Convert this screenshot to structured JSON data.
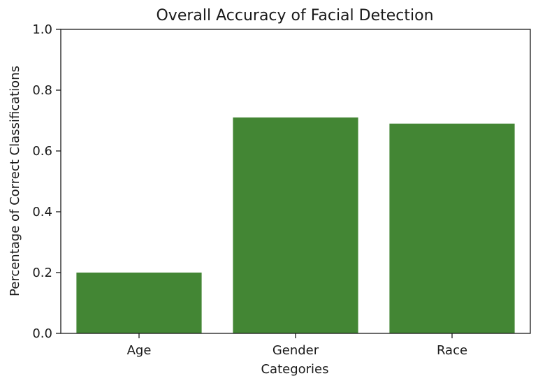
{
  "chart_data": {
    "type": "bar",
    "title": "Overall Accuracy of Facial Detection",
    "xlabel": "Categories",
    "ylabel": "Percentage of Correct Classifications",
    "categories": [
      "Age",
      "Gender",
      "Race"
    ],
    "values": [
      0.2,
      0.71,
      0.69
    ],
    "ylim": [
      0,
      1.0
    ],
    "yticks": [
      "0.0",
      "0.2",
      "0.4",
      "0.6",
      "0.8",
      "1.0"
    ],
    "grid": false,
    "bar_color": "#438634",
    "axis_color": "#1a1a1a"
  }
}
